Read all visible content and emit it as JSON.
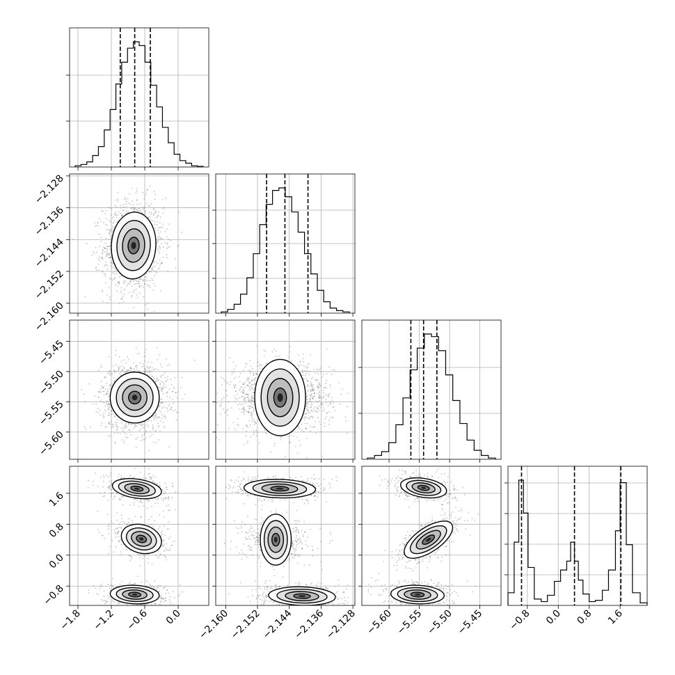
{
  "chart_data": {
    "type": "corner",
    "grid": true,
    "parameters": [
      {
        "range": [
          -1.95,
          0.55
        ],
        "ticks": [
          -1.8,
          -1.2,
          -0.6,
          0.0
        ],
        "tick_labels": [
          "−1.8",
          "−1.2",
          "−0.6",
          "0.0"
        ],
        "quantiles": [
          -1.04,
          -0.78,
          -0.5
        ],
        "hist": [
          0.01,
          0.02,
          0.04,
          0.09,
          0.16,
          0.29,
          0.45,
          0.65,
          0.82,
          0.93,
          0.98,
          0.95,
          0.82,
          0.64,
          0.47,
          0.31,
          0.19,
          0.1,
          0.05,
          0.03,
          0.01,
          0.005
        ],
        "hist_tick_fracs": [
          0.33,
          0.66
        ],
        "mean": -0.78,
        "sd": 0.22
      },
      {
        "range": [
          -2.1625,
          -2.1275
        ],
        "ticks": [
          -2.16,
          -2.152,
          -2.144,
          -2.136,
          -2.128
        ],
        "tick_labels": [
          "−2.160",
          "−2.152",
          "−2.144",
          "−2.136",
          "−2.128"
        ],
        "quantiles": [
          -2.1497,
          -2.1451,
          -2.1393
        ],
        "hist": [
          0.01,
          0.03,
          0.07,
          0.15,
          0.28,
          0.47,
          0.7,
          0.86,
          0.97,
          0.99,
          0.92,
          0.8,
          0.64,
          0.47,
          0.31,
          0.18,
          0.09,
          0.04,
          0.02,
          0.01
        ],
        "hist_tick_fracs": [
          0.25,
          0.5,
          0.74
        ],
        "mean": -2.145,
        "sd": 0.0045
      },
      {
        "range": [
          -5.645,
          -5.415
        ],
        "ticks": [
          -5.6,
          -5.55,
          -5.5,
          -5.45
        ],
        "tick_labels": [
          "−5.60",
          "−5.55",
          "−5.50",
          "−5.45"
        ],
        "quantiles": [
          -5.564,
          -5.543,
          -5.521
        ],
        "hist": [
          0.01,
          0.03,
          0.06,
          0.13,
          0.27,
          0.48,
          0.7,
          0.87,
          0.98,
          0.96,
          0.85,
          0.66,
          0.46,
          0.28,
          0.15,
          0.07,
          0.03,
          0.01
        ],
        "hist_tick_fracs": [
          0.33,
          0.66
        ],
        "mean": -5.543,
        "sd": 0.022
      },
      {
        "range": [
          -1.3,
          2.3
        ],
        "ticks": [
          -0.8,
          0.0,
          0.8,
          1.6
        ],
        "tick_labels": [
          "−0.8",
          "0.0",
          "0.8",
          "1.6"
        ],
        "quantiles": [
          -0.95,
          0.42,
          1.62
        ],
        "hist_edges": [
          -1.3,
          -1.14,
          -1.02,
          -0.9,
          -0.78,
          -0.62,
          -0.44,
          -0.28,
          -0.1,
          0.06,
          0.22,
          0.32,
          0.42,
          0.52,
          0.64,
          0.8,
          0.96,
          1.14,
          1.3,
          1.48,
          1.6,
          1.76,
          1.92,
          2.12,
          2.3
        ],
        "hist": [
          0.1,
          0.5,
          0.99,
          0.73,
          0.3,
          0.05,
          0.03,
          0.08,
          0.19,
          0.28,
          0.35,
          0.5,
          0.35,
          0.2,
          0.09,
          0.03,
          0.04,
          0.12,
          0.28,
          0.59,
          0.97,
          0.48,
          0.1,
          0.02
        ],
        "hist_tick_fracs": [
          0.22,
          0.44,
          0.66,
          0.88
        ],
        "modes": [
          {
            "center": -0.95,
            "weight": 0.33
          },
          {
            "center": 0.42,
            "weight": 0.34
          },
          {
            "center": 1.62,
            "weight": 0.33
          }
        ]
      }
    ],
    "pair_panels": [
      {
        "row": 1,
        "col": 0,
        "blobs": [
          {
            "x": -0.8,
            "y": -2.1455,
            "sx": 0.2,
            "sy": 0.0042,
            "rho": 0.05,
            "w": 1
          }
        ]
      },
      {
        "row": 2,
        "col": 0,
        "blobs": [
          {
            "x": -0.78,
            "y": -5.543,
            "sx": 0.22,
            "sy": 0.021,
            "rho": 0.0,
            "w": 1
          }
        ]
      },
      {
        "row": 2,
        "col": 1,
        "blobs": [
          {
            "x": -2.1463,
            "y": -5.543,
            "sx": 0.0048,
            "sy": 0.021,
            "rho": 0.0,
            "w": 1
          }
        ]
      },
      {
        "row": 3,
        "col": 0,
        "blobs": [
          {
            "x": -0.74,
            "y": 1.72,
            "sx": 0.22,
            "sy": 0.13,
            "rho": -0.3,
            "w": 1
          },
          {
            "x": -0.66,
            "y": 0.42,
            "sx": 0.18,
            "sy": 0.19,
            "rho": -0.2,
            "w": 1
          },
          {
            "x": -0.78,
            "y": -1.02,
            "sx": 0.22,
            "sy": 0.12,
            "rho": -0.1,
            "w": 1
          }
        ]
      },
      {
        "row": 3,
        "col": 1,
        "blobs": [
          {
            "x": -2.1464,
            "y": 1.72,
            "sx": 0.0045,
            "sy": 0.12,
            "rho": -0.1,
            "w": 1
          },
          {
            "x": -2.1474,
            "y": 0.4,
            "sx": 0.0032,
            "sy": 0.2,
            "rho": 0.0,
            "w": 1
          },
          {
            "x": -2.1408,
            "y": -1.06,
            "sx": 0.0042,
            "sy": 0.12,
            "rho": -0.1,
            "w": 1
          }
        ]
      },
      {
        "row": 3,
        "col": 2,
        "blobs": [
          {
            "x": -5.543,
            "y": 1.74,
            "sx": 0.019,
            "sy": 0.13,
            "rho": -0.3,
            "w": 1
          },
          {
            "x": -5.535,
            "y": 0.4,
            "sx": 0.02,
            "sy": 0.24,
            "rho": 0.65,
            "w": 1
          },
          {
            "x": -5.553,
            "y": -1.02,
            "sx": 0.022,
            "sy": 0.12,
            "rho": -0.1,
            "w": 1
          }
        ]
      }
    ]
  }
}
